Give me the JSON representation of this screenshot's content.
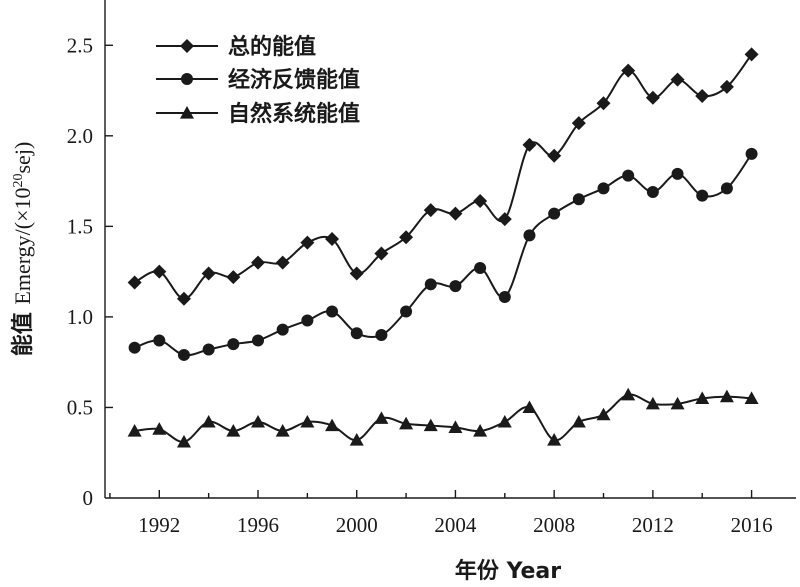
{
  "chart_data": {
    "type": "line",
    "title": "",
    "xlabel": "年份 Year",
    "ylabel_cn": "能值 ",
    "ylabel_en": "Emergy/(×10",
    "ylabel_sup": "20",
    "ylabel_tail": "sej)",
    "xlim": [
      1989.8,
      2017.8
    ],
    "ylim": [
      0,
      2.75
    ],
    "x_ticks": [
      1992,
      1996,
      2000,
      2004,
      2008,
      2012,
      2016
    ],
    "x_tick_labels": [
      "1992",
      "1996",
      "2000",
      "2004",
      "2008",
      "2012",
      "2016"
    ],
    "y_ticks": [
      0,
      0.5,
      1.0,
      1.5,
      2.0,
      2.5
    ],
    "y_tick_labels": [
      "0",
      "0.5",
      "1.0",
      "1.5",
      "2.0",
      "2.5"
    ],
    "grid": false,
    "legend_position": "top-left",
    "x": [
      1991,
      1992,
      1993,
      1994,
      1995,
      1996,
      1997,
      1998,
      1999,
      2000,
      2001,
      2002,
      2003,
      2004,
      2005,
      2006,
      2007,
      2008,
      2009,
      2010,
      2011,
      2012,
      2013,
      2014,
      2015,
      2016
    ],
    "series": [
      {
        "name": "总的能值",
        "marker": "diamond",
        "values": [
          1.19,
          1.25,
          1.1,
          1.24,
          1.22,
          1.3,
          1.3,
          1.41,
          1.43,
          1.24,
          1.35,
          1.44,
          1.59,
          1.57,
          1.64,
          1.54,
          1.95,
          1.89,
          2.07,
          2.18,
          2.36,
          2.21,
          2.31,
          2.22,
          2.27,
          2.45
        ]
      },
      {
        "name": "经济反馈能值",
        "marker": "circle",
        "values": [
          0.83,
          0.87,
          0.79,
          0.82,
          0.85,
          0.87,
          0.93,
          0.98,
          1.03,
          0.91,
          0.9,
          1.03,
          1.18,
          1.17,
          1.27,
          1.11,
          1.45,
          1.57,
          1.65,
          1.71,
          1.78,
          1.69,
          1.79,
          1.67,
          1.71,
          1.9
        ]
      },
      {
        "name": "自然系统能值",
        "marker": "triangle",
        "values": [
          0.37,
          0.38,
          0.31,
          0.42,
          0.37,
          0.42,
          0.37,
          0.42,
          0.4,
          0.32,
          0.44,
          0.41,
          0.4,
          0.39,
          0.37,
          0.42,
          0.5,
          0.32,
          0.42,
          0.46,
          0.57,
          0.52,
          0.52,
          0.55,
          0.56,
          0.55
        ]
      }
    ]
  }
}
